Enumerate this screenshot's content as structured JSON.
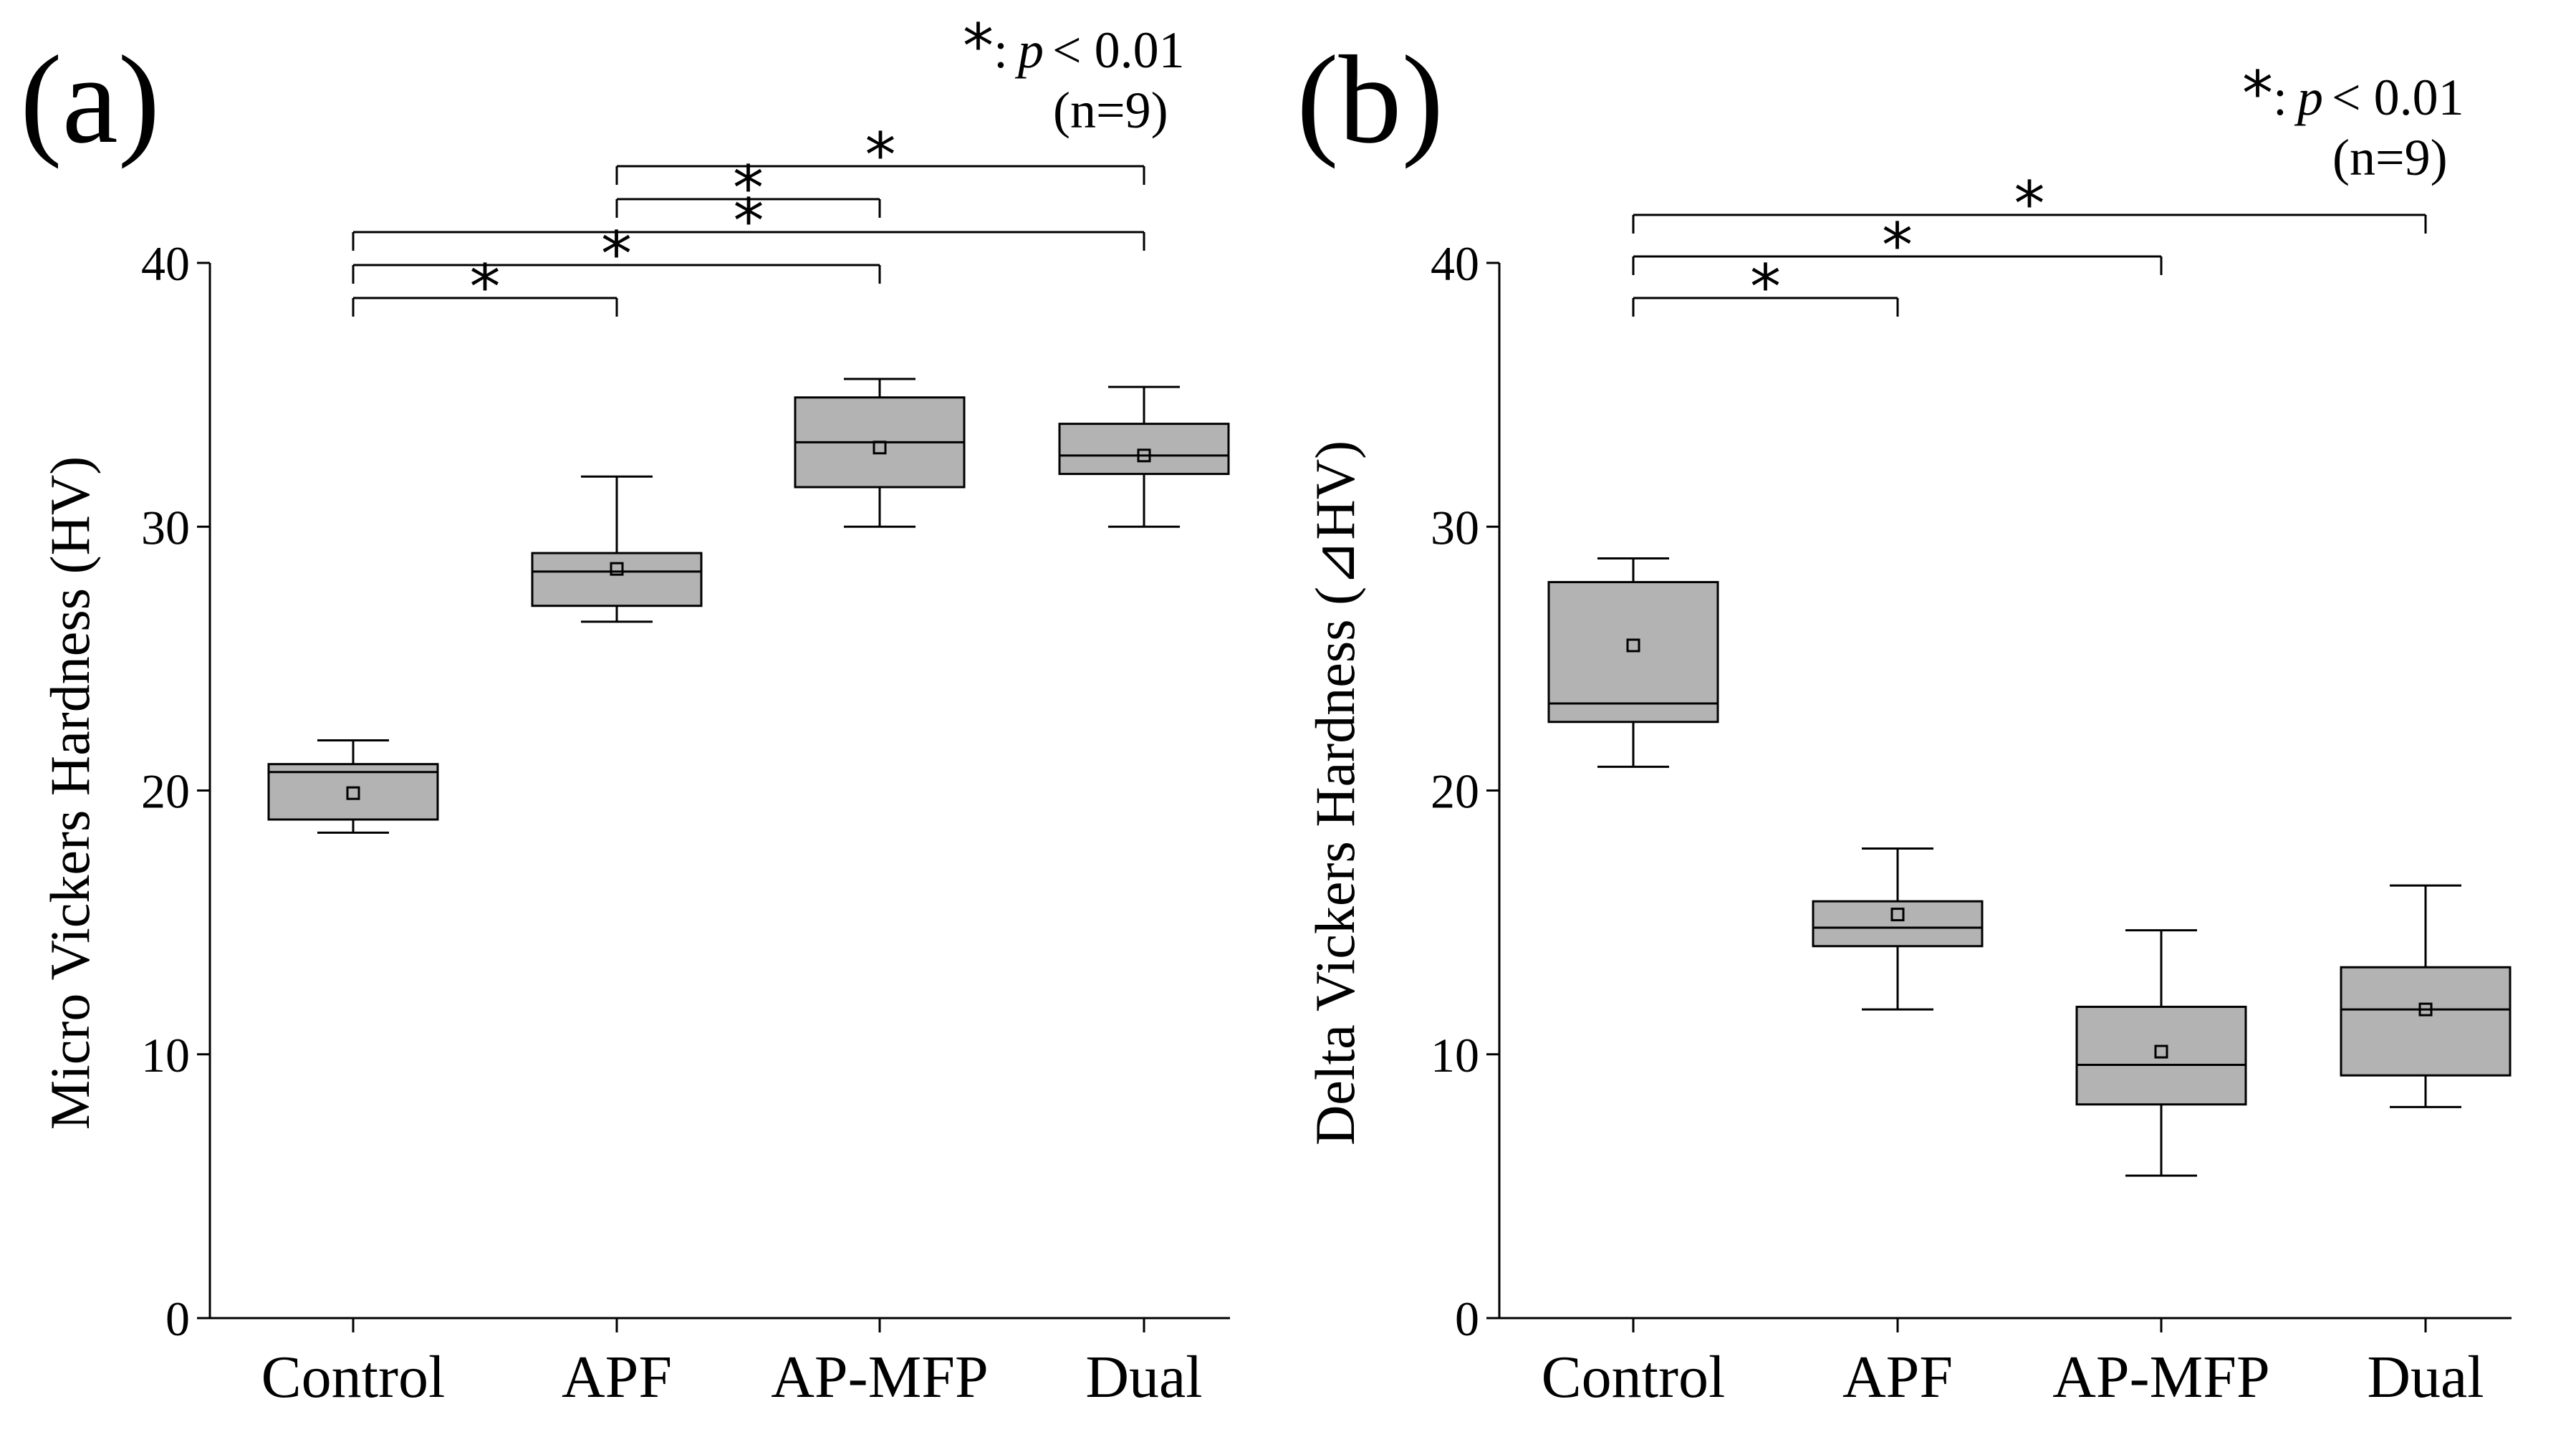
{
  "chart_data": [
    {
      "panel": "(a)",
      "type": "box",
      "ylabel": "Micro Vickers Hardness (HV)",
      "ylim": [
        0,
        40
      ],
      "yticks": [
        "0",
        "10",
        "20",
        "30",
        "40"
      ],
      "categories": [
        "Control",
        "APF",
        "AP-MFP",
        "Dual"
      ],
      "boxes": [
        {
          "min": 18.4,
          "q1": 18.9,
          "median": 20.7,
          "q3": 21.0,
          "max": 21.9,
          "mean": 19.9
        },
        {
          "min": 26.4,
          "q1": 27.0,
          "median": 28.3,
          "q3": 29.0,
          "max": 31.9,
          "mean": 28.4
        },
        {
          "min": 30.0,
          "q1": 31.5,
          "median": 33.2,
          "q3": 34.9,
          "max": 35.6,
          "mean": 33.0
        },
        {
          "min": 30.0,
          "q1": 32.0,
          "median": 32.7,
          "q3": 33.9,
          "max": 35.3,
          "mean": 32.7
        }
      ],
      "significance": [
        {
          "from": 0,
          "to": 1,
          "label": "*"
        },
        {
          "from": 0,
          "to": 2,
          "label": "*"
        },
        {
          "from": 0,
          "to": 3,
          "label": "*"
        },
        {
          "from": 1,
          "to": 2,
          "label": "*"
        },
        {
          "from": 1,
          "to": 3,
          "label": "*"
        }
      ],
      "legend": {
        "star": "*",
        "text_prefix": ":",
        "p": "p",
        "text_suffix": "< 0.01",
        "n": "(n=9)"
      }
    },
    {
      "panel": "(b)",
      "type": "box",
      "ylabel": "Delta Vickers Hardness (⊿HV)",
      "ylim": [
        0,
        40
      ],
      "yticks": [
        "0",
        "10",
        "20",
        "30",
        "40"
      ],
      "categories": [
        "Control",
        "APF",
        "AP-MFP",
        "Dual"
      ],
      "boxes": [
        {
          "min": 20.9,
          "q1": 22.6,
          "median": 23.3,
          "q3": 27.9,
          "max": 28.8,
          "mean": 25.5
        },
        {
          "min": 11.7,
          "q1": 14.1,
          "median": 14.8,
          "q3": 15.8,
          "max": 17.8,
          "mean": 15.3
        },
        {
          "min": 5.4,
          "q1": 8.1,
          "median": 9.6,
          "q3": 11.8,
          "max": 14.7,
          "mean": 10.1
        },
        {
          "min": 8.0,
          "q1": 9.2,
          "median": 11.7,
          "q3": 13.3,
          "max": 16.4,
          "mean": 11.7
        }
      ],
      "significance": [
        {
          "from": 0,
          "to": 1,
          "label": "*"
        },
        {
          "from": 0,
          "to": 2,
          "label": "*"
        },
        {
          "from": 0,
          "to": 3,
          "label": "*"
        }
      ],
      "legend": {
        "star": "*",
        "text_prefix": ":",
        "p": "p",
        "text_suffix": "< 0.01",
        "n": "(n=9)"
      }
    }
  ]
}
